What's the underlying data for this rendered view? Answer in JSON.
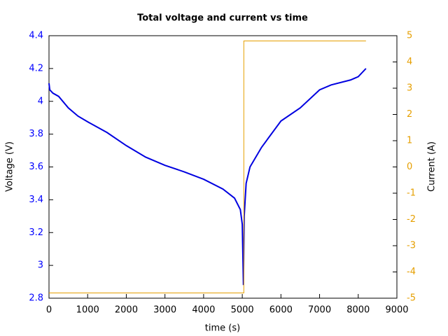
{
  "chart_data": {
    "type": "line",
    "title": "Total voltage and current vs time",
    "x_label": "time (s)",
    "y_label": "Voltage (V)",
    "y2_label": "Current (A)",
    "xlim": [
      0,
      9000
    ],
    "xticks": [
      0,
      1000,
      2000,
      3000,
      4000,
      5000,
      6000,
      7000,
      8000,
      9000
    ],
    "ylim": [
      2.8,
      4.4
    ],
    "yticks": [
      2.8,
      3,
      3.2,
      3.4,
      3.6,
      3.8,
      4,
      4.2,
      4.4
    ],
    "y2lim": [
      -5,
      5
    ],
    "y2ticks": [
      -5,
      -4,
      -3,
      -2,
      -1,
      0,
      1,
      2,
      3,
      4,
      5
    ],
    "y_color": "#0000ff",
    "y2_color": "#e69f00",
    "series": [
      {
        "name": "Voltage",
        "color": "#0000e0",
        "x": [
          0,
          20,
          100,
          250,
          500,
          750,
          1000,
          1500,
          2000,
          2500,
          3000,
          3500,
          4000,
          4500,
          4800,
          4950,
          5000,
          5030,
          5050,
          5100,
          5200,
          5500,
          6000,
          6500,
          7000,
          7300,
          7800,
          8000,
          8200
        ],
        "values": [
          4.11,
          4.07,
          4.05,
          4.03,
          3.96,
          3.91,
          3.875,
          3.81,
          3.73,
          3.66,
          3.61,
          3.57,
          3.525,
          3.465,
          3.41,
          3.34,
          3.25,
          2.88,
          3.3,
          3.5,
          3.6,
          3.72,
          3.88,
          3.96,
          4.07,
          4.1,
          4.13,
          4.15,
          4.2
        ]
      },
      {
        "name": "Current",
        "color": "#e69f00",
        "axis": "y2",
        "x": [
          0,
          5040,
          5040,
          8200
        ],
        "values": [
          -4.8,
          -4.8,
          4.8,
          4.8
        ]
      }
    ]
  }
}
